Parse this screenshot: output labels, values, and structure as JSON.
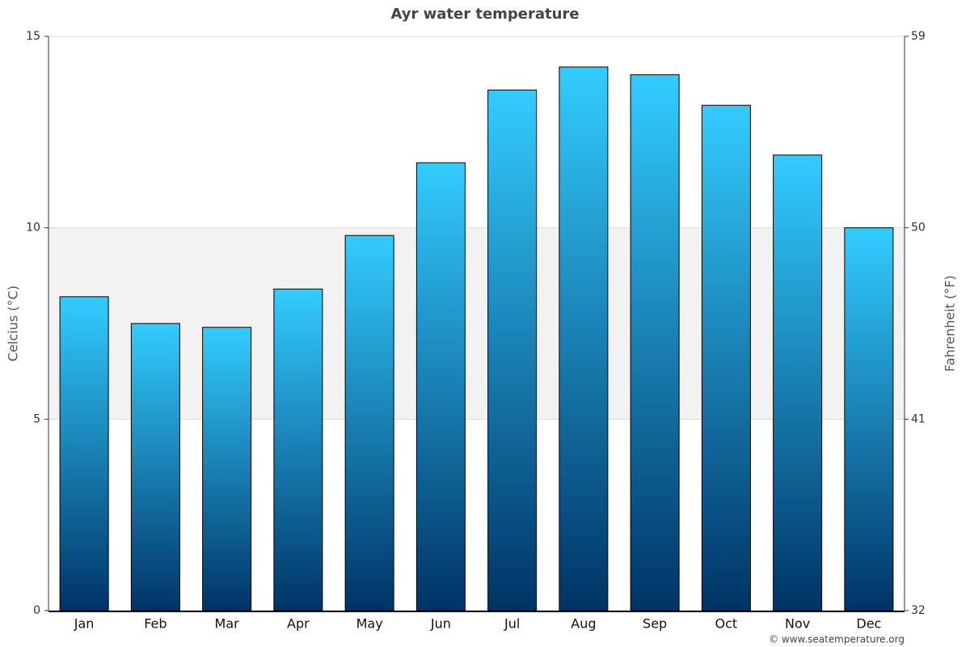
{
  "chart_data": {
    "type": "bar",
    "title": "Ayr water temperature",
    "ylabel": "Celcius (°C)",
    "y2label": "Fahrenheit (°F)",
    "categories": [
      "Jan",
      "Feb",
      "Mar",
      "Apr",
      "May",
      "Jun",
      "Jul",
      "Aug",
      "Sep",
      "Oct",
      "Nov",
      "Dec"
    ],
    "values": [
      8.2,
      7.5,
      7.4,
      8.4,
      9.8,
      11.7,
      13.6,
      14.2,
      14.0,
      13.2,
      11.9,
      10.0
    ],
    "color_top": "#33ccff",
    "color_bottom": "#003366",
    "ylim": [
      0,
      15
    ],
    "yticks": [
      0,
      5,
      10,
      15
    ],
    "y2lim": [
      32,
      59
    ],
    "y2ticks": [
      32,
      41,
      50,
      59
    ],
    "shaded_band": [
      5,
      10
    ],
    "grid": true,
    "source": "© www.seatemperature.org"
  }
}
